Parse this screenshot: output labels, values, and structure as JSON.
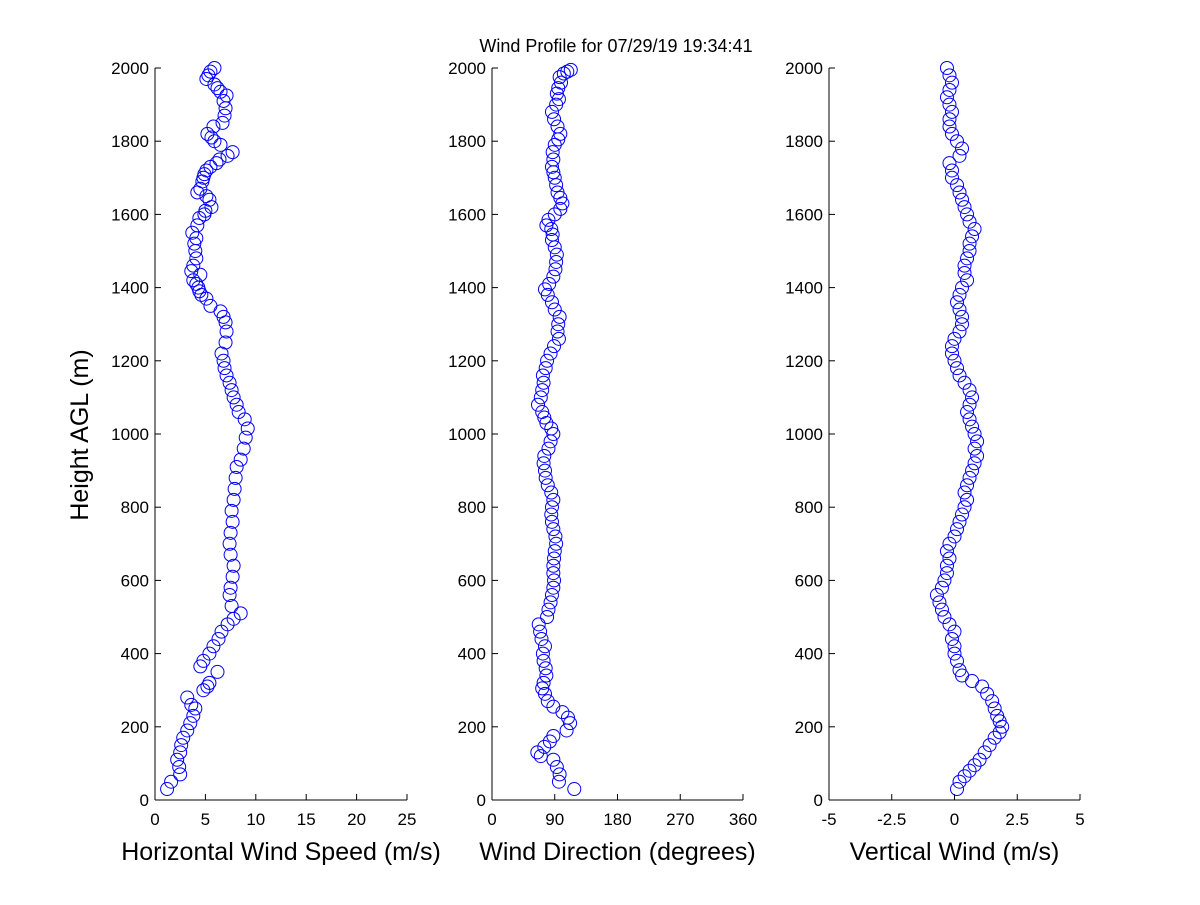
{
  "figure": {
    "title": "Wind Profile for  07/29/19 19:34:41",
    "ylabel": "Height AGL (m)",
    "marker_color": "#0000ff"
  },
  "chart_data": [
    {
      "type": "scatter",
      "xlabel": "Horizontal Wind Speed (m/s)",
      "ylabel": "Height AGL (m)",
      "xlim": [
        0,
        25
      ],
      "ylim": [
        0,
        2000
      ],
      "xticks": [
        "0",
        "5",
        "10",
        "15",
        "20",
        "25"
      ],
      "yticks": [
        "0",
        "200",
        "400",
        "600",
        "800",
        "1000",
        "1200",
        "1400",
        "1600",
        "1800",
        "2000"
      ],
      "marker": "circle-open",
      "grid": false,
      "points": [
        [
          1.2,
          30
        ],
        [
          1.6,
          50
        ],
        [
          2.5,
          70
        ],
        [
          2.4,
          90
        ],
        [
          2.2,
          110
        ],
        [
          2.5,
          130
        ],
        [
          2.6,
          150
        ],
        [
          2.8,
          170
        ],
        [
          3.2,
          190
        ],
        [
          3.5,
          210
        ],
        [
          3.8,
          230
        ],
        [
          4.0,
          250
        ],
        [
          3.6,
          260
        ],
        [
          3.2,
          280
        ],
        [
          4.8,
          300
        ],
        [
          5.2,
          310
        ],
        [
          5.4,
          320
        ],
        [
          6.2,
          350
        ],
        [
          4.5,
          365
        ],
        [
          4.8,
          380
        ],
        [
          5.4,
          400
        ],
        [
          5.8,
          420
        ],
        [
          6.3,
          440
        ],
        [
          6.6,
          460
        ],
        [
          7.2,
          480
        ],
        [
          7.8,
          495
        ],
        [
          8.5,
          510
        ],
        [
          7.6,
          530
        ],
        [
          7.4,
          560
        ],
        [
          7.5,
          580
        ],
        [
          7.7,
          610
        ],
        [
          7.8,
          640
        ],
        [
          7.5,
          670
        ],
        [
          7.4,
          700
        ],
        [
          7.5,
          730
        ],
        [
          7.7,
          760
        ],
        [
          7.6,
          790
        ],
        [
          7.8,
          820
        ],
        [
          7.9,
          850
        ],
        [
          8.0,
          880
        ],
        [
          8.1,
          910
        ],
        [
          8.5,
          930
        ],
        [
          8.8,
          960
        ],
        [
          9.0,
          990
        ],
        [
          9.2,
          1015
        ],
        [
          8.9,
          1040
        ],
        [
          8.3,
          1060
        ],
        [
          8.1,
          1080
        ],
        [
          7.8,
          1100
        ],
        [
          7.6,
          1120
        ],
        [
          7.4,
          1140
        ],
        [
          7.1,
          1160
        ],
        [
          6.9,
          1180
        ],
        [
          6.8,
          1200
        ],
        [
          6.6,
          1220
        ],
        [
          7.0,
          1250
        ],
        [
          7.1,
          1280
        ],
        [
          7.0,
          1305
        ],
        [
          6.8,
          1320
        ],
        [
          6.5,
          1335
        ],
        [
          5.5,
          1350
        ],
        [
          5.1,
          1370
        ],
        [
          4.6,
          1380
        ],
        [
          4.4,
          1390
        ],
        [
          4.3,
          1400
        ],
        [
          4.1,
          1410
        ],
        [
          3.8,
          1420
        ],
        [
          4.5,
          1435
        ],
        [
          3.6,
          1445
        ],
        [
          3.8,
          1460
        ],
        [
          4.1,
          1480
        ],
        [
          4.0,
          1500
        ],
        [
          3.9,
          1520
        ],
        [
          4.1,
          1535
        ],
        [
          3.7,
          1550
        ],
        [
          4.2,
          1570
        ],
        [
          4.4,
          1590
        ],
        [
          4.9,
          1600
        ],
        [
          5.0,
          1610
        ],
        [
          5.6,
          1620
        ],
        [
          5.4,
          1640
        ],
        [
          5.1,
          1650
        ],
        [
          4.2,
          1660
        ],
        [
          4.5,
          1670
        ],
        [
          4.7,
          1690
        ],
        [
          4.8,
          1700
        ],
        [
          4.9,
          1710
        ],
        [
          5.1,
          1720
        ],
        [
          5.5,
          1730
        ],
        [
          6.1,
          1740
        ],
        [
          6.4,
          1750
        ],
        [
          7.2,
          1760
        ],
        [
          7.7,
          1770
        ],
        [
          6.5,
          1790
        ],
        [
          5.9,
          1800
        ],
        [
          5.6,
          1810
        ],
        [
          5.2,
          1820
        ],
        [
          5.8,
          1840
        ],
        [
          6.7,
          1850
        ],
        [
          6.9,
          1870
        ],
        [
          7.0,
          1890
        ],
        [
          6.8,
          1910
        ],
        [
          7.1,
          1925
        ],
        [
          6.5,
          1935
        ],
        [
          6.2,
          1945
        ],
        [
          5.9,
          1955
        ],
        [
          5.1,
          1970
        ],
        [
          5.3,
          1980
        ],
        [
          5.5,
          1990
        ],
        [
          5.9,
          2000
        ]
      ]
    },
    {
      "type": "scatter",
      "xlabel": "Wind Direction (degrees)",
      "xlim": [
        0,
        360
      ],
      "ylim": [
        0,
        2000
      ],
      "xticks": [
        "0",
        "90",
        "180",
        "270",
        "360"
      ],
      "yticks": [
        "0",
        "200",
        "400",
        "600",
        "800",
        "1000",
        "1200",
        "1400",
        "1600",
        "1800",
        "2000"
      ],
      "marker": "circle-open",
      "grid": false,
      "points": [
        [
          118,
          30
        ],
        [
          96,
          50
        ],
        [
          97,
          70
        ],
        [
          93,
          90
        ],
        [
          88,
          110
        ],
        [
          70,
          120
        ],
        [
          65,
          130
        ],
        [
          75,
          145
        ],
        [
          83,
          160
        ],
        [
          88,
          175
        ],
        [
          107,
          190
        ],
        [
          112,
          210
        ],
        [
          109,
          225
        ],
        [
          101,
          240
        ],
        [
          88,
          255
        ],
        [
          80,
          270
        ],
        [
          76,
          290
        ],
        [
          72,
          305
        ],
        [
          74,
          320
        ],
        [
          78,
          340
        ],
        [
          77,
          360
        ],
        [
          74,
          380
        ],
        [
          73,
          400
        ],
        [
          76,
          420
        ],
        [
          71,
          440
        ],
        [
          69,
          460
        ],
        [
          67,
          480
        ],
        [
          79,
          500
        ],
        [
          81,
          520
        ],
        [
          84,
          540
        ],
        [
          86,
          560
        ],
        [
          88,
          580
        ],
        [
          89,
          600
        ],
        [
          88,
          620
        ],
        [
          88,
          640
        ],
        [
          89,
          660
        ],
        [
          90,
          680
        ],
        [
          92,
          700
        ],
        [
          91,
          720
        ],
        [
          88,
          740
        ],
        [
          86,
          760
        ],
        [
          85,
          780
        ],
        [
          86,
          800
        ],
        [
          88,
          820
        ],
        [
          85,
          840
        ],
        [
          80,
          860
        ],
        [
          77,
          880
        ],
        [
          76,
          900
        ],
        [
          74,
          920
        ],
        [
          75,
          940
        ],
        [
          81,
          960
        ],
        [
          84,
          980
        ],
        [
          88,
          1000
        ],
        [
          85,
          1015
        ],
        [
          78,
          1030
        ],
        [
          75,
          1045
        ],
        [
          72,
          1060
        ],
        [
          66,
          1080
        ],
        [
          70,
          1100
        ],
        [
          72,
          1120
        ],
        [
          74,
          1140
        ],
        [
          73,
          1160
        ],
        [
          77,
          1180
        ],
        [
          79,
          1200
        ],
        [
          84,
          1220
        ],
        [
          89,
          1240
        ],
        [
          96,
          1260
        ],
        [
          94,
          1280
        ],
        [
          95,
          1300
        ],
        [
          97,
          1320
        ],
        [
          90,
          1340
        ],
        [
          86,
          1360
        ],
        [
          80,
          1380
        ],
        [
          76,
          1395
        ],
        [
          82,
          1410
        ],
        [
          88,
          1430
        ],
        [
          91,
          1450
        ],
        [
          92,
          1470
        ],
        [
          93,
          1490
        ],
        [
          90,
          1510
        ],
        [
          86,
          1530
        ],
        [
          87,
          1545
        ],
        [
          85,
          1560
        ],
        [
          78,
          1570
        ],
        [
          81,
          1585
        ],
        [
          90,
          1600
        ],
        [
          98,
          1615
        ],
        [
          101,
          1630
        ],
        [
          98,
          1645
        ],
        [
          94,
          1660
        ],
        [
          92,
          1680
        ],
        [
          90,
          1700
        ],
        [
          88,
          1715
        ],
        [
          86,
          1730
        ],
        [
          88,
          1750
        ],
        [
          87,
          1770
        ],
        [
          90,
          1790
        ],
        [
          95,
          1805
        ],
        [
          98,
          1820
        ],
        [
          94,
          1840
        ],
        [
          89,
          1860
        ],
        [
          86,
          1880
        ],
        [
          92,
          1900
        ],
        [
          96,
          1915
        ],
        [
          93,
          1930
        ],
        [
          95,
          1945
        ],
        [
          99,
          1960
        ],
        [
          97,
          1975
        ],
        [
          103,
          1985
        ],
        [
          113,
          1995
        ],
        [
          108,
          1990
        ]
      ]
    },
    {
      "type": "scatter",
      "xlabel": "Vertical Wind (m/s)",
      "xlim": [
        -5,
        5
      ],
      "ylim": [
        0,
        2000
      ],
      "xticks": [
        "-5",
        "-2.5",
        "0",
        "2.5",
        "5"
      ],
      "yticks": [
        "0",
        "200",
        "400",
        "600",
        "800",
        "1000",
        "1200",
        "1400",
        "1600",
        "1800",
        "2000"
      ],
      "marker": "circle-open",
      "grid": false,
      "points": [
        [
          0.1,
          30
        ],
        [
          0.2,
          50
        ],
        [
          0.4,
          65
        ],
        [
          0.6,
          80
        ],
        [
          0.8,
          95
        ],
        [
          1.0,
          110
        ],
        [
          1.2,
          130
        ],
        [
          1.4,
          150
        ],
        [
          1.6,
          170
        ],
        [
          1.8,
          185
        ],
        [
          1.9,
          200
        ],
        [
          1.8,
          215
        ],
        [
          1.7,
          230
        ],
        [
          1.6,
          250
        ],
        [
          1.5,
          270
        ],
        [
          1.3,
          290
        ],
        [
          1.1,
          310
        ],
        [
          0.7,
          325
        ],
        [
          0.3,
          340
        ],
        [
          0.2,
          355
        ],
        [
          0.1,
          380
        ],
        [
          0.0,
          400
        ],
        [
          0.0,
          420
        ],
        [
          -0.1,
          440
        ],
        [
          0.0,
          460
        ],
        [
          -0.2,
          480
        ],
        [
          -0.4,
          500
        ],
        [
          -0.5,
          520
        ],
        [
          -0.6,
          540
        ],
        [
          -0.7,
          560
        ],
        [
          -0.5,
          580
        ],
        [
          -0.4,
          600
        ],
        [
          -0.3,
          620
        ],
        [
          -0.3,
          640
        ],
        [
          -0.2,
          660
        ],
        [
          -0.3,
          680
        ],
        [
          -0.2,
          700
        ],
        [
          0.0,
          720
        ],
        [
          0.1,
          740
        ],
        [
          0.2,
          760
        ],
        [
          0.3,
          780
        ],
        [
          0.4,
          800
        ],
        [
          0.5,
          820
        ],
        [
          0.4,
          840
        ],
        [
          0.5,
          860
        ],
        [
          0.6,
          880
        ],
        [
          0.7,
          900
        ],
        [
          0.8,
          920
        ],
        [
          0.9,
          940
        ],
        [
          0.8,
          960
        ],
        [
          0.9,
          980
        ],
        [
          0.8,
          1000
        ],
        [
          0.7,
          1020
        ],
        [
          0.6,
          1040
        ],
        [
          0.5,
          1060
        ],
        [
          0.6,
          1080
        ],
        [
          0.7,
          1100
        ],
        [
          0.6,
          1120
        ],
        [
          0.4,
          1140
        ],
        [
          0.2,
          1160
        ],
        [
          0.1,
          1180
        ],
        [
          0.0,
          1200
        ],
        [
          -0.1,
          1220
        ],
        [
          -0.1,
          1240
        ],
        [
          0.0,
          1260
        ],
        [
          0.2,
          1280
        ],
        [
          0.3,
          1300
        ],
        [
          0.3,
          1320
        ],
        [
          0.2,
          1340
        ],
        [
          0.1,
          1360
        ],
        [
          0.2,
          1380
        ],
        [
          0.3,
          1400
        ],
        [
          0.5,
          1420
        ],
        [
          0.4,
          1440
        ],
        [
          0.4,
          1460
        ],
        [
          0.5,
          1480
        ],
        [
          0.6,
          1500
        ],
        [
          0.6,
          1520
        ],
        [
          0.7,
          1540
        ],
        [
          0.8,
          1560
        ],
        [
          0.6,
          1580
        ],
        [
          0.5,
          1600
        ],
        [
          0.4,
          1620
        ],
        [
          0.3,
          1640
        ],
        [
          0.2,
          1660
        ],
        [
          0.1,
          1680
        ],
        [
          -0.1,
          1700
        ],
        [
          -0.1,
          1720
        ],
        [
          -0.2,
          1740
        ],
        [
          0.2,
          1760
        ],
        [
          0.3,
          1780
        ],
        [
          0.1,
          1800
        ],
        [
          -0.1,
          1820
        ],
        [
          -0.2,
          1840
        ],
        [
          -0.2,
          1860
        ],
        [
          -0.1,
          1880
        ],
        [
          -0.2,
          1900
        ],
        [
          -0.3,
          1920
        ],
        [
          -0.2,
          1940
        ],
        [
          -0.1,
          1960
        ],
        [
          -0.2,
          1980
        ],
        [
          -0.3,
          2000
        ]
      ]
    }
  ]
}
